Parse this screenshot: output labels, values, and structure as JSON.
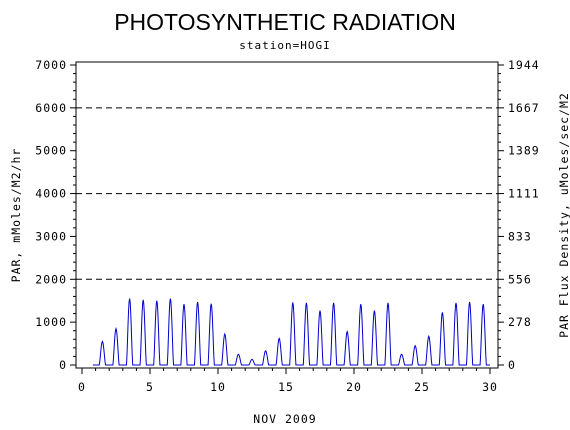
{
  "chart_data": {
    "type": "line",
    "title": "PHOTOSYNTHETIC RADIATION",
    "subtitle": "station=HOGI",
    "xlabel": "NOV 2009",
    "ylabel_left": "PAR, mMoles/M2/hr",
    "ylabel_right": "PAR Flux Density, uMoles/sec/M2",
    "xlim": [
      0,
      30
    ],
    "ylim": [
      0,
      7000
    ],
    "x_ticks": [
      "0",
      "5",
      "10",
      "15",
      "20",
      "25",
      "30"
    ],
    "y_ticks_left": [
      "0",
      "1000",
      "2000",
      "3000",
      "4000",
      "5000",
      "6000",
      "7000"
    ],
    "y_ticks_right": [
      "0",
      "278",
      "556",
      "833",
      "1111",
      "1389",
      "1667",
      "1944"
    ],
    "gridlines_y": [
      2000,
      4000,
      6000
    ],
    "grid_style": "dashed horizontal",
    "line_color": "#0000cc",
    "series": [
      {
        "daily_peaks": [
          {
            "day": 1,
            "peak": 550
          },
          {
            "day": 2,
            "peak": 850
          },
          {
            "day": 3,
            "peak": 1550
          },
          {
            "day": 4,
            "peak": 1520
          },
          {
            "day": 5,
            "peak": 1500
          },
          {
            "day": 6,
            "peak": 1550
          },
          {
            "day": 7,
            "peak": 1420
          },
          {
            "day": 8,
            "peak": 1470
          },
          {
            "day": 9,
            "peak": 1430
          },
          {
            "day": 10,
            "peak": 720
          },
          {
            "day": 11,
            "peak": 250
          },
          {
            "day": 12,
            "peak": 130
          },
          {
            "day": 13,
            "peak": 330
          },
          {
            "day": 14,
            "peak": 620
          },
          {
            "day": 15,
            "peak": 1460
          },
          {
            "day": 16,
            "peak": 1450
          },
          {
            "day": 17,
            "peak": 1270
          },
          {
            "day": 18,
            "peak": 1450
          },
          {
            "day": 19,
            "peak": 780
          },
          {
            "day": 20,
            "peak": 1420
          },
          {
            "day": 21,
            "peak": 1270
          },
          {
            "day": 22,
            "peak": 1450
          },
          {
            "day": 23,
            "peak": 250
          },
          {
            "day": 24,
            "peak": 450
          },
          {
            "day": 25,
            "peak": 670
          },
          {
            "day": 26,
            "peak": 1230
          },
          {
            "day": 27,
            "peak": 1450
          },
          {
            "day": 28,
            "peak": 1470
          },
          {
            "day": 29,
            "peak": 1420
          }
        ]
      }
    ]
  }
}
